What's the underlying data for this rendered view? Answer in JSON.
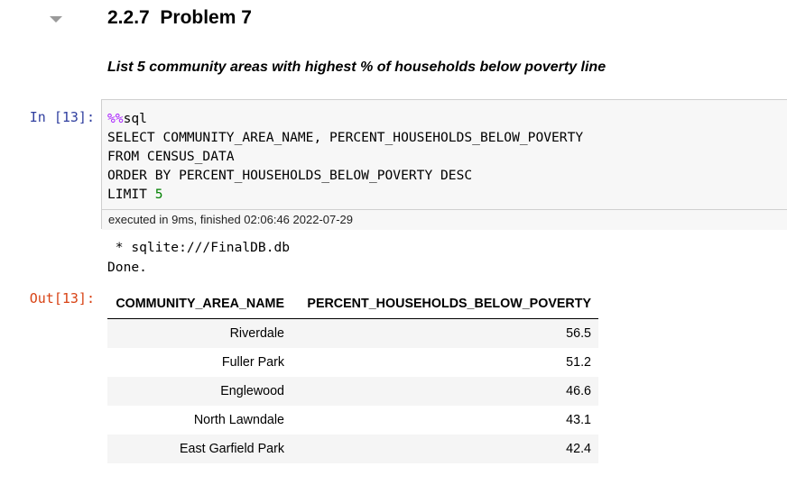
{
  "heading": {
    "number": "2.2.7",
    "title": "Problem 7"
  },
  "subheading": "List 5 community areas with highest % of households below poverty line",
  "input_cell": {
    "prompt": "In [13]:",
    "code": {
      "magic": "%%",
      "magic_cmd": "sql",
      "line2": "SELECT COMMUNITY_AREA_NAME, PERCENT_HOUSEHOLDS_BELOW_POVERTY",
      "line3": "FROM CENSUS_DATA",
      "line4": "ORDER BY PERCENT_HOUSEHOLDS_BELOW_POVERTY DESC",
      "line5_kw": "LIMIT ",
      "line5_num": "5"
    },
    "execution_info": "executed in 9ms, finished 02:06:46 2022-07-29"
  },
  "stdout": {
    "line1": " * sqlite:///FinalDB.db",
    "line2": "Done."
  },
  "output_cell": {
    "prompt": "Out[13]:",
    "columns": [
      "COMMUNITY_AREA_NAME",
      "PERCENT_HOUSEHOLDS_BELOW_POVERTY"
    ],
    "rows": [
      [
        "Riverdale",
        "56.5"
      ],
      [
        "Fuller Park",
        "51.2"
      ],
      [
        "Englewood",
        "46.6"
      ],
      [
        "North Lawndale",
        "43.1"
      ],
      [
        "East Garfield Park",
        "42.4"
      ]
    ]
  }
}
